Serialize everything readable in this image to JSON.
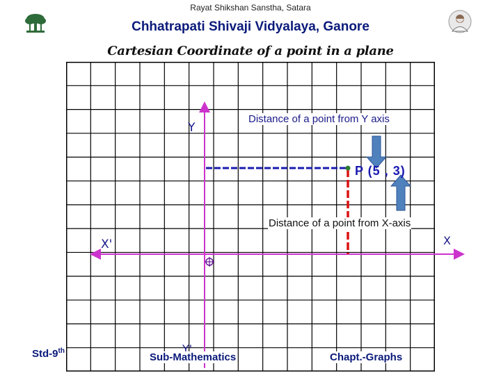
{
  "header": {
    "organization": "Rayat  Shikshan Sanstha, Satara",
    "school": "Chhatrapati  Shivaji Vidyalaya, Ganore",
    "title": "Cartesian Coordinate of a point in a plane"
  },
  "icons": {
    "logo": "banyan-tree-logo-icon",
    "photo": "founder-portrait-icon"
  },
  "diagram": {
    "y_axis_label": "Y",
    "y_prime_label": "Y'",
    "x_axis_label": "X",
    "x_prime_label": "X'",
    "point_label": "P (5 , 3)",
    "distance_from_y_axis": "Distance of a point from  Y axis",
    "distance_from_x_axis": "Distance of a point from X-axis",
    "colors": {
      "grid": "#000000",
      "axes": "#cc33cc",
      "horizontal_dash": "#1a1ab0",
      "vertical_dash": "#dd1111",
      "arrow_fill": "#4f81bd",
      "point": "#2e7d32"
    }
  },
  "footer": {
    "std": "Std-9",
    "std_sup": "th",
    "subject": "Sub-Mathematics",
    "chapter": "Chapt.-Graphs"
  }
}
